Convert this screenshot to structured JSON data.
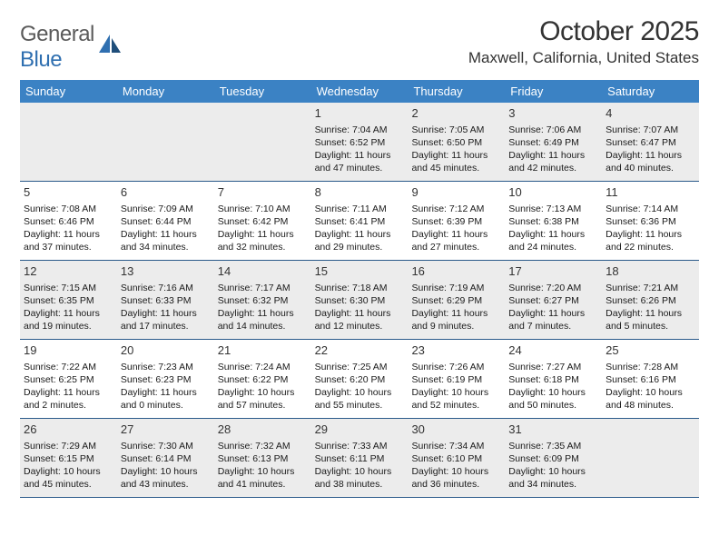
{
  "logo": {
    "text_general": "General",
    "text_blue": "Blue"
  },
  "title": "October 2025",
  "location": "Maxwell, California, United States",
  "header_color": "#3b82c4",
  "weekdays": [
    "Sunday",
    "Monday",
    "Tuesday",
    "Wednesday",
    "Thursday",
    "Friday",
    "Saturday"
  ],
  "weeks": [
    [
      {
        "n": "",
        "sr": "",
        "ss": "",
        "dl1": "",
        "dl2": ""
      },
      {
        "n": "",
        "sr": "",
        "ss": "",
        "dl1": "",
        "dl2": ""
      },
      {
        "n": "",
        "sr": "",
        "ss": "",
        "dl1": "",
        "dl2": ""
      },
      {
        "n": "1",
        "sr": "Sunrise: 7:04 AM",
        "ss": "Sunset: 6:52 PM",
        "dl1": "Daylight: 11 hours",
        "dl2": "and 47 minutes."
      },
      {
        "n": "2",
        "sr": "Sunrise: 7:05 AM",
        "ss": "Sunset: 6:50 PM",
        "dl1": "Daylight: 11 hours",
        "dl2": "and 45 minutes."
      },
      {
        "n": "3",
        "sr": "Sunrise: 7:06 AM",
        "ss": "Sunset: 6:49 PM",
        "dl1": "Daylight: 11 hours",
        "dl2": "and 42 minutes."
      },
      {
        "n": "4",
        "sr": "Sunrise: 7:07 AM",
        "ss": "Sunset: 6:47 PM",
        "dl1": "Daylight: 11 hours",
        "dl2": "and 40 minutes."
      }
    ],
    [
      {
        "n": "5",
        "sr": "Sunrise: 7:08 AM",
        "ss": "Sunset: 6:46 PM",
        "dl1": "Daylight: 11 hours",
        "dl2": "and 37 minutes."
      },
      {
        "n": "6",
        "sr": "Sunrise: 7:09 AM",
        "ss": "Sunset: 6:44 PM",
        "dl1": "Daylight: 11 hours",
        "dl2": "and 34 minutes."
      },
      {
        "n": "7",
        "sr": "Sunrise: 7:10 AM",
        "ss": "Sunset: 6:42 PM",
        "dl1": "Daylight: 11 hours",
        "dl2": "and 32 minutes."
      },
      {
        "n": "8",
        "sr": "Sunrise: 7:11 AM",
        "ss": "Sunset: 6:41 PM",
        "dl1": "Daylight: 11 hours",
        "dl2": "and 29 minutes."
      },
      {
        "n": "9",
        "sr": "Sunrise: 7:12 AM",
        "ss": "Sunset: 6:39 PM",
        "dl1": "Daylight: 11 hours",
        "dl2": "and 27 minutes."
      },
      {
        "n": "10",
        "sr": "Sunrise: 7:13 AM",
        "ss": "Sunset: 6:38 PM",
        "dl1": "Daylight: 11 hours",
        "dl2": "and 24 minutes."
      },
      {
        "n": "11",
        "sr": "Sunrise: 7:14 AM",
        "ss": "Sunset: 6:36 PM",
        "dl1": "Daylight: 11 hours",
        "dl2": "and 22 minutes."
      }
    ],
    [
      {
        "n": "12",
        "sr": "Sunrise: 7:15 AM",
        "ss": "Sunset: 6:35 PM",
        "dl1": "Daylight: 11 hours",
        "dl2": "and 19 minutes."
      },
      {
        "n": "13",
        "sr": "Sunrise: 7:16 AM",
        "ss": "Sunset: 6:33 PM",
        "dl1": "Daylight: 11 hours",
        "dl2": "and 17 minutes."
      },
      {
        "n": "14",
        "sr": "Sunrise: 7:17 AM",
        "ss": "Sunset: 6:32 PM",
        "dl1": "Daylight: 11 hours",
        "dl2": "and 14 minutes."
      },
      {
        "n": "15",
        "sr": "Sunrise: 7:18 AM",
        "ss": "Sunset: 6:30 PM",
        "dl1": "Daylight: 11 hours",
        "dl2": "and 12 minutes."
      },
      {
        "n": "16",
        "sr": "Sunrise: 7:19 AM",
        "ss": "Sunset: 6:29 PM",
        "dl1": "Daylight: 11 hours",
        "dl2": "and 9 minutes."
      },
      {
        "n": "17",
        "sr": "Sunrise: 7:20 AM",
        "ss": "Sunset: 6:27 PM",
        "dl1": "Daylight: 11 hours",
        "dl2": "and 7 minutes."
      },
      {
        "n": "18",
        "sr": "Sunrise: 7:21 AM",
        "ss": "Sunset: 6:26 PM",
        "dl1": "Daylight: 11 hours",
        "dl2": "and 5 minutes."
      }
    ],
    [
      {
        "n": "19",
        "sr": "Sunrise: 7:22 AM",
        "ss": "Sunset: 6:25 PM",
        "dl1": "Daylight: 11 hours",
        "dl2": "and 2 minutes."
      },
      {
        "n": "20",
        "sr": "Sunrise: 7:23 AM",
        "ss": "Sunset: 6:23 PM",
        "dl1": "Daylight: 11 hours",
        "dl2": "and 0 minutes."
      },
      {
        "n": "21",
        "sr": "Sunrise: 7:24 AM",
        "ss": "Sunset: 6:22 PM",
        "dl1": "Daylight: 10 hours",
        "dl2": "and 57 minutes."
      },
      {
        "n": "22",
        "sr": "Sunrise: 7:25 AM",
        "ss": "Sunset: 6:20 PM",
        "dl1": "Daylight: 10 hours",
        "dl2": "and 55 minutes."
      },
      {
        "n": "23",
        "sr": "Sunrise: 7:26 AM",
        "ss": "Sunset: 6:19 PM",
        "dl1": "Daylight: 10 hours",
        "dl2": "and 52 minutes."
      },
      {
        "n": "24",
        "sr": "Sunrise: 7:27 AM",
        "ss": "Sunset: 6:18 PM",
        "dl1": "Daylight: 10 hours",
        "dl2": "and 50 minutes."
      },
      {
        "n": "25",
        "sr": "Sunrise: 7:28 AM",
        "ss": "Sunset: 6:16 PM",
        "dl1": "Daylight: 10 hours",
        "dl2": "and 48 minutes."
      }
    ],
    [
      {
        "n": "26",
        "sr": "Sunrise: 7:29 AM",
        "ss": "Sunset: 6:15 PM",
        "dl1": "Daylight: 10 hours",
        "dl2": "and 45 minutes."
      },
      {
        "n": "27",
        "sr": "Sunrise: 7:30 AM",
        "ss": "Sunset: 6:14 PM",
        "dl1": "Daylight: 10 hours",
        "dl2": "and 43 minutes."
      },
      {
        "n": "28",
        "sr": "Sunrise: 7:32 AM",
        "ss": "Sunset: 6:13 PM",
        "dl1": "Daylight: 10 hours",
        "dl2": "and 41 minutes."
      },
      {
        "n": "29",
        "sr": "Sunrise: 7:33 AM",
        "ss": "Sunset: 6:11 PM",
        "dl1": "Daylight: 10 hours",
        "dl2": "and 38 minutes."
      },
      {
        "n": "30",
        "sr": "Sunrise: 7:34 AM",
        "ss": "Sunset: 6:10 PM",
        "dl1": "Daylight: 10 hours",
        "dl2": "and 36 minutes."
      },
      {
        "n": "31",
        "sr": "Sunrise: 7:35 AM",
        "ss": "Sunset: 6:09 PM",
        "dl1": "Daylight: 10 hours",
        "dl2": "and 34 minutes."
      },
      {
        "n": "",
        "sr": "",
        "ss": "",
        "dl1": "",
        "dl2": ""
      }
    ]
  ]
}
